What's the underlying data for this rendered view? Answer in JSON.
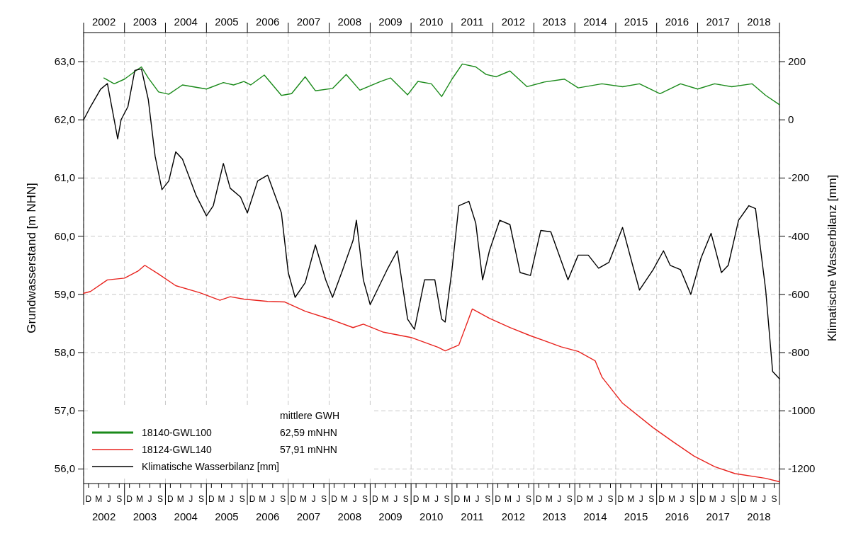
{
  "chart_data": {
    "type": "line",
    "ylabel": "Grundwasserstand [m NHN]",
    "y2label": "Klimatische Wasserbilanz [mm]",
    "legend_title": "mittlere GWH",
    "legend": "bottom left",
    "grid": true,
    "line_style": "solid",
    "marker": "none",
    "annotations": [
      "D",
      "M",
      "J",
      "S",
      "D",
      "M",
      "J",
      "S",
      "D",
      "M",
      "J",
      "S",
      "D",
      "M",
      "J",
      "S",
      "D",
      "M",
      "J",
      "S",
      "D",
      "M",
      "J",
      "S",
      "D",
      "M",
      "J",
      "S",
      "D",
      "M",
      "J",
      "S",
      "D",
      "M",
      "J",
      "S",
      "D",
      "M",
      "J",
      "S",
      "D",
      "M",
      "J",
      "S",
      "D",
      "M",
      "J",
      "S",
      "D",
      "M",
      "J",
      "S",
      "D",
      "M",
      "J",
      "S",
      "D",
      "M",
      "J",
      "S",
      "D",
      "M",
      "J",
      "S",
      "D",
      "M",
      "J",
      "S",
      "62,59 mNHN",
      "57,91 mNHN"
    ],
    "xlim": [
      "2001-11-01",
      "2018-11-01"
    ],
    "ylim": [
      55.75,
      63.5
    ],
    "yticks": [
      {
        "value": 56,
        "label": "56,0"
      },
      {
        "value": 57,
        "label": "57,0"
      },
      {
        "value": 58,
        "label": "58,0"
      },
      {
        "value": 59,
        "label": "59,0"
      },
      {
        "value": 60,
        "label": "60,0"
      },
      {
        "value": 61,
        "label": "61,0"
      },
      {
        "value": 62,
        "label": "62,0"
      },
      {
        "value": 63,
        "label": "63,0"
      }
    ],
    "y2lim": [
      -1250,
      300
    ],
    "y2ticks": [
      -1200,
      -1000,
      -800,
      -600,
      -400,
      -200,
      0,
      200
    ],
    "xticks": [
      {
        "value": "2001-11-01",
        "label": null
      },
      {
        "value": "2002-11-01",
        "label": null
      },
      {
        "value": "2003-11-01",
        "label": null
      },
      {
        "value": "2004-11-01",
        "label": null
      },
      {
        "value": "2005-11-01",
        "label": null
      },
      {
        "value": "2006-11-01",
        "label": null
      },
      {
        "value": "2007-11-01",
        "label": null
      },
      {
        "value": "2008-11-01",
        "label": null
      },
      {
        "value": "2009-11-01",
        "label": null
      },
      {
        "value": "2010-11-01",
        "label": null
      },
      {
        "value": "2011-11-01",
        "label": null
      },
      {
        "value": "2012-11-01",
        "label": null
      },
      {
        "value": "2013-11-01",
        "label": null
      },
      {
        "value": "2014-11-01",
        "label": null
      },
      {
        "value": "2015-11-01",
        "label": null
      },
      {
        "value": "2016-11-01",
        "label": null
      },
      {
        "value": "2017-11-01",
        "label": null
      },
      {
        "value": "2018-11-01",
        "label": null
      },
      {
        "value": "2002-05-01",
        "label": "2002"
      },
      {
        "value": "2003-05-01",
        "label": "2003"
      },
      {
        "value": "2004-05-01",
        "label": "2004"
      },
      {
        "value": "2005-05-01",
        "label": "2005"
      },
      {
        "value": "2006-05-01",
        "label": "2006"
      },
      {
        "value": "2007-05-01",
        "label": "2007"
      },
      {
        "value": "2008-05-01",
        "label": "2008"
      },
      {
        "value": "2009-05-01",
        "label": "2009"
      },
      {
        "value": "2010-05-01",
        "label": "2010"
      },
      {
        "value": "2011-05-01",
        "label": "2011"
      },
      {
        "value": "2012-05-01",
        "label": "2012"
      },
      {
        "value": "2013-05-01",
        "label": "2013"
      },
      {
        "value": "2014-05-01",
        "label": "2014"
      },
      {
        "value": "2015-05-01",
        "label": "2015"
      },
      {
        "value": "2016-05-01",
        "label": "2016"
      },
      {
        "value": "2017-05-01",
        "label": "2017"
      },
      {
        "value": "2018-05-01",
        "label": "2018"
      }
    ],
    "x2lim": [
      "2001-11-01",
      "2018-11-01"
    ],
    "x2ticks": [
      {
        "value": "2001-11-01",
        "label": null
      },
      {
        "value": "2002-11-01",
        "label": null
      },
      {
        "value": "2003-11-01",
        "label": null
      },
      {
        "value": "2004-11-01",
        "label": null
      },
      {
        "value": "2005-11-01",
        "label": null
      },
      {
        "value": "2006-11-01",
        "label": null
      },
      {
        "value": "2007-11-01",
        "label": null
      },
      {
        "value": "2008-11-01",
        "label": null
      },
      {
        "value": "2009-11-01",
        "label": null
      },
      {
        "value": "2010-11-01",
        "label": null
      },
      {
        "value": "2011-11-01",
        "label": null
      },
      {
        "value": "2012-11-01",
        "label": null
      },
      {
        "value": "2013-11-01",
        "label": null
      },
      {
        "value": "2014-11-01",
        "label": null
      },
      {
        "value": "2015-11-01",
        "label": null
      },
      {
        "value": "2016-11-01",
        "label": null
      },
      {
        "value": "2017-11-01",
        "label": null
      },
      {
        "value": "2018-11-01",
        "label": null
      },
      {
        "value": "2002-05-01",
        "label": "2002"
      },
      {
        "value": "2003-05-01",
        "label": "2003"
      },
      {
        "value": "2004-05-01",
        "label": "2004"
      },
      {
        "value": "2005-05-01",
        "label": "2005"
      },
      {
        "value": "2006-05-01",
        "label": "2006"
      },
      {
        "value": "2007-05-01",
        "label": "2007"
      },
      {
        "value": "2008-05-01",
        "label": "2008"
      },
      {
        "value": "2009-05-01",
        "label": "2009"
      },
      {
        "value": "2010-05-01",
        "label": "2010"
      },
      {
        "value": "2011-05-01",
        "label": "2011"
      },
      {
        "value": "2012-05-01",
        "label": "2012"
      },
      {
        "value": "2013-05-01",
        "label": "2013"
      },
      {
        "value": "2014-05-01",
        "label": "2014"
      },
      {
        "value": "2015-05-01",
        "label": "2015"
      },
      {
        "value": "2016-05-01",
        "label": "2016"
      },
      {
        "value": "2017-05-01",
        "label": "2017"
      },
      {
        "value": "2018-05-01",
        "label": "2018"
      }
    ],
    "series": [
      {
        "name": "18140-GWL100",
        "color": "#1a8a1a",
        "x": [
          "2002-05",
          "2002-08",
          "2002-11",
          "2003-03",
          "2003-04",
          "2003-06",
          "2003-09",
          "2003-12",
          "2004-04",
          "2004-11",
          "2005-04",
          "2005-07",
          "2005-10",
          "2005-12",
          "2006-04",
          "2006-09",
          "2006-12",
          "2007-04",
          "2007-07",
          "2007-12",
          "2008-04",
          "2008-08",
          "2009-02",
          "2009-05",
          "2009-10",
          "2010-01",
          "2010-05",
          "2010-08",
          "2010-11",
          "2011-02",
          "2011-06",
          "2011-09",
          "2011-12",
          "2012-04",
          "2012-09",
          "2013-02",
          "2013-08",
          "2013-12",
          "2014-07",
          "2015-01",
          "2015-06",
          "2015-12",
          "2016-06",
          "2016-11",
          "2017-04",
          "2017-09",
          "2018-03",
          "2018-07",
          "2018-11"
        ],
        "values": [
          62.72,
          62.62,
          62.7,
          62.87,
          62.91,
          62.72,
          62.48,
          62.44,
          62.6,
          62.53,
          62.64,
          62.6,
          62.66,
          62.6,
          62.77,
          62.42,
          62.45,
          62.74,
          62.5,
          62.54,
          62.78,
          62.51,
          62.66,
          62.72,
          62.43,
          62.66,
          62.62,
          62.4,
          62.7,
          62.96,
          62.91,
          62.78,
          62.74,
          62.84,
          62.57,
          62.65,
          62.7,
          62.55,
          62.62,
          62.57,
          62.62,
          62.45,
          62.62,
          62.53,
          62.62,
          62.57,
          62.62,
          62.42,
          62.26
        ]
      },
      {
        "name": "18124-GWL140",
        "color": "#e8231e",
        "x": [
          "2001-11",
          "2002-01",
          "2002-06",
          "2002-11",
          "2003-03",
          "2003-05",
          "2003-09",
          "2004-02",
          "2004-09",
          "2005-03",
          "2005-06",
          "2005-10",
          "2006-05",
          "2006-10",
          "2007-04",
          "2007-12",
          "2008-06",
          "2008-09",
          "2009-03",
          "2009-11",
          "2010-07",
          "2010-09",
          "2011-01",
          "2011-05",
          "2011-10",
          "2012-04",
          "2012-10",
          "2013-07",
          "2013-12",
          "2014-05",
          "2014-07",
          "2015-01",
          "2015-10",
          "2016-04",
          "2016-10",
          "2017-04",
          "2017-10",
          "2018-07",
          "2018-11"
        ],
        "values": [
          59.02,
          59.05,
          59.25,
          59.28,
          59.4,
          59.5,
          59.35,
          59.15,
          59.03,
          58.9,
          58.96,
          58.92,
          58.88,
          58.87,
          58.71,
          58.56,
          58.43,
          58.49,
          58.35,
          58.26,
          58.09,
          58.03,
          58.13,
          58.75,
          58.59,
          58.43,
          58.29,
          58.1,
          58.02,
          57.86,
          57.58,
          57.13,
          56.71,
          56.46,
          56.22,
          56.04,
          55.92,
          55.84,
          55.78
        ]
      },
      {
        "name": "Klimatische Wasserbilanz [mm]",
        "color": "#000000",
        "axis": "y2",
        "x": [
          "2001-11",
          "2002-01",
          "2002-04",
          "2002-06",
          "2002-08",
          "2002-09",
          "2002-10",
          "2002-12",
          "2003-02",
          "2003-04",
          "2003-06",
          "2003-08",
          "2003-10",
          "2003-12",
          "2004-02",
          "2004-04",
          "2004-08",
          "2004-11",
          "2005-01",
          "2005-04",
          "2005-06",
          "2005-09",
          "2005-11",
          "2006-02",
          "2006-05",
          "2006-09",
          "2006-11",
          "2007-01",
          "2007-04",
          "2007-07",
          "2007-10",
          "2007-12",
          "2008-03",
          "2008-06",
          "2008-07",
          "2008-09",
          "2008-11",
          "2009-04",
          "2009-07",
          "2009-10",
          "2009-12",
          "2010-03",
          "2010-06",
          "2010-08",
          "2010-09",
          "2010-11",
          "2011-01",
          "2011-04",
          "2011-06",
          "2011-08",
          "2011-10",
          "2012-01",
          "2012-04",
          "2012-07",
          "2012-10",
          "2013-01",
          "2013-04",
          "2013-09",
          "2013-12",
          "2014-03",
          "2014-06",
          "2014-09",
          "2015-01",
          "2015-04",
          "2015-06",
          "2015-10",
          "2016-01",
          "2016-03",
          "2016-06",
          "2016-09",
          "2016-12",
          "2017-03",
          "2017-06",
          "2017-08",
          "2017-11",
          "2018-02",
          "2018-04",
          "2018-07",
          "2018-09",
          "2018-11"
        ],
        "values": [
          0,
          45,
          105,
          125,
          0,
          -65,
          0,
          45,
          170,
          175,
          70,
          -125,
          -240,
          -210,
          -110,
          -135,
          -260,
          -330,
          -295,
          -150,
          -235,
          -265,
          -320,
          -210,
          -190,
          -320,
          -525,
          -610,
          -560,
          -430,
          -550,
          -610,
          -515,
          -415,
          -345,
          -550,
          -635,
          -515,
          -450,
          -685,
          -720,
          -550,
          -550,
          -685,
          -695,
          -515,
          -295,
          -280,
          -355,
          -550,
          -450,
          -345,
          -360,
          -525,
          -535,
          -380,
          -385,
          -550,
          -465,
          -465,
          -510,
          -490,
          -370,
          -500,
          -585,
          -515,
          -450,
          -500,
          -515,
          -600,
          -475,
          -390,
          -525,
          -500,
          -345,
          -295,
          -305,
          -585,
          -865,
          -890
        ]
      }
    ]
  }
}
